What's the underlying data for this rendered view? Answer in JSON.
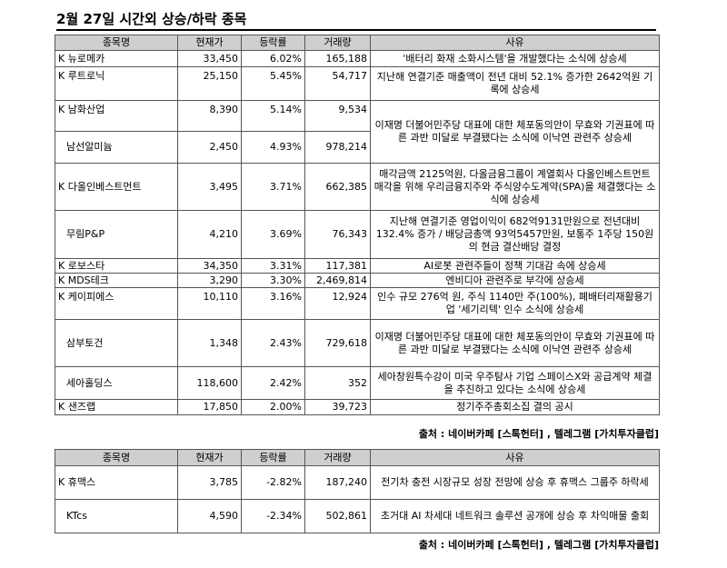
{
  "title": "2월 27일  시간외 상승/하락 종목",
  "headers": [
    "종목명",
    "현재가",
    "등락률",
    "거래량",
    "사유"
  ],
  "rising": [
    {
      "name": "K 뉴로메카",
      "price": "33,450",
      "change": "6.02%",
      "volume": "165,188",
      "reason": "'배터리 화재 소화시스템'을 개발했다는 소식에 상승세"
    },
    {
      "name": "K 루트로닉",
      "price": "25,150",
      "change": "5.45%",
      "volume": "54,717",
      "reason": "지난해 연결기준 매출액이 전년 대비 52.1% 증가한 2642억원 기록에 상승세"
    },
    {
      "name": "K 남화산업",
      "price": "8,390",
      "change": "5.14%",
      "volume": "9,534",
      "reason": "이재명 더불어민주당 대표에 대한 체포동의안이 무효와 기권표에 따른 과반 미달로 부결됐다는 소식에 이낙연 관련주 상승세"
    },
    {
      "name": "남선알미늄",
      "price": "2,450",
      "change": "4.93%",
      "volume": "978,214",
      "reason": ""
    },
    {
      "name": "K 다올인베스트먼트",
      "price": "3,495",
      "change": "3.71%",
      "volume": "662,385",
      "reason": "매각금액 2125억원, 다올금융그룹이 계열회사 다올인베스트먼트 매각을 위해 우리금융지주와 주식양수도계약(SPA)을 체결했다는 소식에 상승세"
    },
    {
      "name": "무림P&P",
      "price": "4,210",
      "change": "3.69%",
      "volume": "76,343",
      "reason": "지난해 연결기준 영업이익이 682억9131만원으로 전년대비 132.4% 증가 / 배당금총액 93억5457만원, 보통주 1주당 150원의 현금 결산배당 결정"
    },
    {
      "name": "K 로보스타",
      "price": "34,350",
      "change": "3.31%",
      "volume": "117,381",
      "reason": "AI로봇 관련주들이 정책 기대감 속에 상승세"
    },
    {
      "name": "K MDS테크",
      "price": "3,290",
      "change": "3.30%",
      "volume": "2,469,814",
      "reason": "엔비디아 관련주로 부각에 상승세"
    },
    {
      "name": "K 케이피에스",
      "price": "10,110",
      "change": "3.16%",
      "volume": "12,924",
      "reason": "인수 규모 276억 원, 주식 1140만 주(100%), 폐배터리재활용기업 '세기리텍' 인수 소식에 상승세"
    },
    {
      "name": "삼부토건",
      "price": "1,348",
      "change": "2.43%",
      "volume": "729,618",
      "reason": "이재명 더불어민주당 대표에 대한 체포동의안이 무효와 기권표에 따른 과반 미달로 부결됐다는 소식에 이낙연 관련주 상승세"
    },
    {
      "name": "세아홀딩스",
      "price": "118,600",
      "change": "2.42%",
      "volume": "352",
      "reason": "세아창원특수강이 미국 우주탐사 기업 스페이스X와 공급계약 체결을 추진하고 있다는 소식에 상승세"
    },
    {
      "name": "K 샌즈랩",
      "price": "17,850",
      "change": "2.00%",
      "volume": "39,723",
      "reason": "정기주주총회소집 결의 공시"
    }
  ],
  "source1": "출처 : 네이버카페 [스톡헌터] , 텔레그램 [가치투자클럽]",
  "falling": [
    {
      "name": "K 휴맥스",
      "price": "3,785",
      "change": "-2.82%",
      "volume": "187,240",
      "reason": "전기차 충전 시장규모 성장 전망에 상승 후 휴맥스 그룹주 하락세"
    },
    {
      "name": "KTcs",
      "price": "4,590",
      "change": "-2.34%",
      "volume": "502,861",
      "reason": "초거대 AI 차세대 네트워크 솔루션 공개에 상승 후 차익매물 출회"
    }
  ],
  "source2": "출처 : 네이버카페 [스톡헌터] , 텔레그램 [가치투자클럽]"
}
